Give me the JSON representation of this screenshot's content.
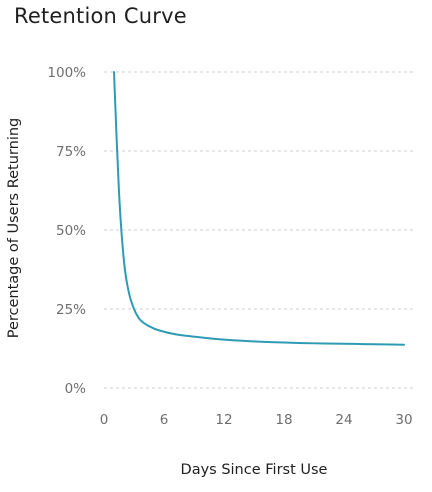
{
  "chart_data": {
    "type": "line",
    "title": "Retention Curve",
    "xlabel": "Days Since First Use",
    "ylabel": "Percentage of Users Returning",
    "xlim": [
      0,
      30
    ],
    "ylim": [
      0,
      100
    ],
    "x_ticks": [
      0,
      6,
      12,
      18,
      24,
      30
    ],
    "y_ticks": [
      0,
      25,
      50,
      75,
      100
    ],
    "y_tick_labels": [
      "0%",
      "25%",
      "50%",
      "75%",
      "100%"
    ],
    "grid": "horizontal dashed",
    "color": "#2e9bb5",
    "series": [
      {
        "x": [
          1,
          1.5,
          2,
          2.5,
          3,
          3.5,
          4,
          5,
          6,
          7,
          8,
          10,
          12,
          14,
          16,
          18,
          20,
          22,
          24,
          26,
          28,
          30
        ],
        "y": [
          100,
          62,
          40,
          30,
          25,
          22,
          20.5,
          18.8,
          17.8,
          17.1,
          16.6,
          15.9,
          15.3,
          14.9,
          14.6,
          14.4,
          14.2,
          14.1,
          14.0,
          13.9,
          13.8,
          13.7
        ]
      }
    ]
  }
}
